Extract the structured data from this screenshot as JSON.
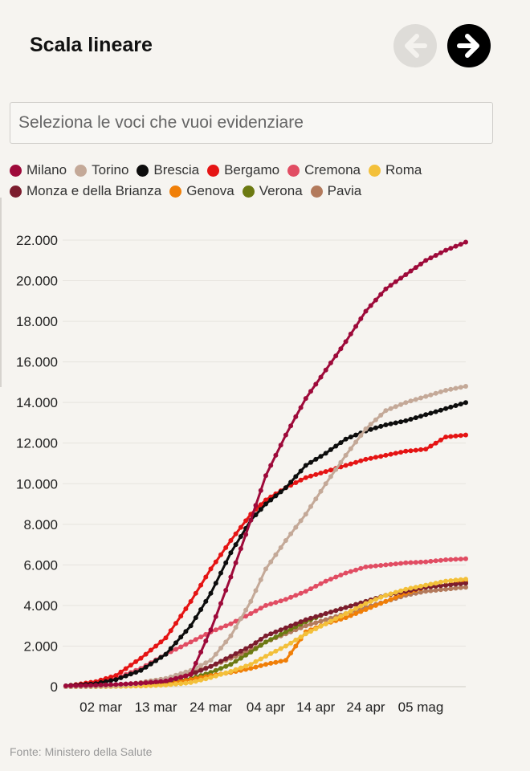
{
  "title": "Scala lineare",
  "nav": {
    "prev_icon": "arrow-left-icon",
    "next_icon": "arrow-right-icon"
  },
  "search": {
    "placeholder": "Seleziona le voci che vuoi evidenziare"
  },
  "source": "Fonte: Ministero della Salute",
  "chart_data": {
    "type": "line",
    "x": [
      "2020-02-24",
      "2020-03-01",
      "2020-03-05",
      "2020-03-10",
      "2020-03-15",
      "2020-03-20",
      "2020-03-24",
      "2020-03-28",
      "2020-04-01",
      "2020-04-04",
      "2020-04-08",
      "2020-04-12",
      "2020-04-16",
      "2020-04-20",
      "2020-04-24",
      "2020-04-28",
      "2020-05-02",
      "2020-05-06",
      "2020-05-10",
      "2020-05-14"
    ],
    "xticks": [
      {
        "date": "2020-03-02",
        "label": "02 mar"
      },
      {
        "date": "2020-03-13",
        "label": "13 mar"
      },
      {
        "date": "2020-03-24",
        "label": "24 mar"
      },
      {
        "date": "2020-04-04",
        "label": "04 apr"
      },
      {
        "date": "2020-04-14",
        "label": "14 apr"
      },
      {
        "date": "2020-04-24",
        "label": "24 apr"
      },
      {
        "date": "2020-05-05",
        "label": "05 mag"
      }
    ],
    "yticks": [
      {
        "value": 0,
        "label": "0"
      },
      {
        "value": 2000,
        "label": "2.000"
      },
      {
        "value": 4000,
        "label": "4.000"
      },
      {
        "value": 6000,
        "label": "6.000"
      },
      {
        "value": 8000,
        "label": "8.000"
      },
      {
        "value": 10000,
        "label": "10.000"
      },
      {
        "value": 12000,
        "label": "12.000"
      },
      {
        "value": 14000,
        "label": "14.000"
      },
      {
        "value": 16000,
        "label": "16.000"
      },
      {
        "value": 18000,
        "label": "18.000"
      },
      {
        "value": 20000,
        "label": "20.000"
      },
      {
        "value": 22000,
        "label": "22.000"
      }
    ],
    "ylim": [
      0,
      22000
    ],
    "grid": true,
    "legend_position": "top",
    "series": [
      {
        "name": "Milano",
        "color": "#9e0a3a",
        "values": [
          40,
          70,
          110,
          170,
          280,
          600,
          2800,
          5400,
          8200,
          10400,
          12400,
          14200,
          15600,
          17000,
          18500,
          19600,
          20300,
          21000,
          21500,
          21900
        ]
      },
      {
        "name": "Torino",
        "color": "#c4a998",
        "values": [
          0,
          20,
          50,
          150,
          400,
          800,
          1300,
          2500,
          4200,
          5800,
          7200,
          8500,
          10000,
          11400,
          12700,
          13600,
          14000,
          14300,
          14600,
          14800
        ]
      },
      {
        "name": "Brescia",
        "color": "#0d0d0d",
        "values": [
          40,
          150,
          350,
          800,
          1600,
          3000,
          4600,
          6600,
          8200,
          9000,
          9800,
          10900,
          11500,
          12200,
          12600,
          12900,
          13100,
          13400,
          13700,
          14000
        ]
      },
      {
        "name": "Bergamo",
        "color": "#e51414",
        "values": [
          30,
          250,
          550,
          1400,
          2400,
          4200,
          5800,
          7200,
          8500,
          9200,
          9800,
          10300,
          10600,
          10900,
          11200,
          11400,
          11600,
          11700,
          12300,
          12400
        ]
      },
      {
        "name": "Cremona",
        "color": "#e14d63",
        "values": [
          20,
          150,
          400,
          900,
          1600,
          2200,
          2700,
          3100,
          3600,
          4000,
          4300,
          4700,
          5200,
          5600,
          5900,
          6000,
          6100,
          6150,
          6250,
          6300
        ]
      },
      {
        "name": "Roma",
        "color": "#f3c03a",
        "values": [
          0,
          5,
          10,
          30,
          80,
          200,
          450,
          750,
          1100,
          1500,
          2000,
          2600,
          3100,
          3600,
          4100,
          4500,
          4800,
          5000,
          5200,
          5300
        ]
      },
      {
        "name": "Monza e della Brianza",
        "color": "#7c1d2e",
        "values": [
          0,
          10,
          40,
          100,
          250,
          600,
          1000,
          1500,
          2000,
          2500,
          2900,
          3300,
          3600,
          3900,
          4200,
          4500,
          4700,
          4900,
          5000,
          5100
        ]
      },
      {
        "name": "Genova",
        "color": "#f07f08",
        "values": [
          0,
          5,
          20,
          50,
          120,
          350,
          550,
          700,
          900,
          1100,
          1300,
          2700,
          3100,
          3400,
          3800,
          4200,
          4600,
          4900,
          5000,
          5200
        ]
      },
      {
        "name": "Verona",
        "color": "#6c7a12",
        "values": [
          0,
          5,
          20,
          60,
          150,
          400,
          700,
          1100,
          1700,
          2200,
          2700,
          3200,
          3600,
          3900,
          4200,
          4500,
          4700,
          4900,
          5000,
          5100
        ]
      },
      {
        "name": "Pavia",
        "color": "#b37a5c",
        "values": [
          0,
          30,
          80,
          200,
          400,
          700,
          1000,
          1400,
          1800,
          2200,
          2600,
          3000,
          3300,
          3600,
          3900,
          4200,
          4500,
          4700,
          4800,
          4900
        ]
      }
    ]
  }
}
